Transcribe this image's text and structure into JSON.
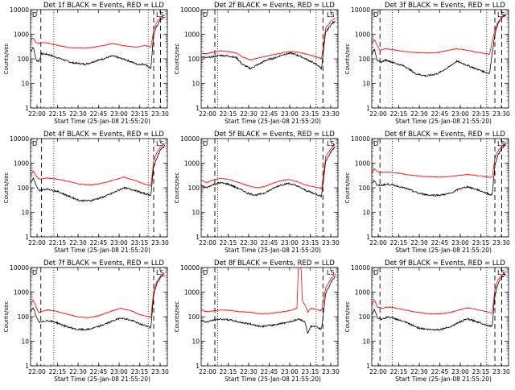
{
  "ylabel": "Counts/sec",
  "xlabel": "Start Time (25-Jan-08 21:55:20)",
  "yticks": [
    {
      "label": "1",
      "value": 1
    },
    {
      "label": "10",
      "value": 10
    },
    {
      "label": "100",
      "value": 100
    },
    {
      "label": "1000",
      "value": 1000
    },
    {
      "label": "10000",
      "value": 10000
    }
  ],
  "xticks": [
    {
      "label": "22:00",
      "value": 4.67
    },
    {
      "label": "22:15",
      "value": 19.67
    },
    {
      "label": "22:30",
      "value": 34.67
    },
    {
      "label": "22:45",
      "value": 49.67
    },
    {
      "label": "23:00",
      "value": 64.67
    },
    {
      "label": "23:15",
      "value": 79.67
    },
    {
      "label": "23:30",
      "value": 94.67
    }
  ],
  "colors": {
    "events": "#000000",
    "lld": "#ff0000",
    "axes": "#000000"
  },
  "chart_data": [
    {
      "type": "line",
      "title": "Det 1f BLACK = Events, RED = LLD",
      "corner_markers": [
        "D",
        "LS"
      ],
      "ylog": true,
      "ylim": [
        1,
        10000
      ],
      "xlim": [
        0,
        100
      ],
      "vlines_dashed": [
        7.5,
        90,
        95
      ],
      "vlines_dotted": [
        17,
        86
      ],
      "series": [
        {
          "name": "Events",
          "color": "#000000",
          "x": [
            0,
            2,
            4,
            6,
            8,
            12,
            20,
            30,
            40,
            50,
            60,
            70,
            78,
            84,
            88,
            90,
            92,
            95,
            98
          ],
          "y": [
            200,
            300,
            90,
            80,
            160,
            155,
            110,
            70,
            60,
            90,
            130,
            90,
            60,
            60,
            40,
            1000,
            2000,
            4000,
            5000
          ]
        },
        {
          "name": "LLD",
          "color": "#ff0000",
          "x": [
            0,
            2,
            4,
            6,
            8,
            12,
            20,
            30,
            40,
            50,
            60,
            70,
            78,
            84,
            88,
            90,
            92,
            95,
            98
          ],
          "y": [
            600,
            700,
            450,
            420,
            460,
            450,
            350,
            280,
            270,
            320,
            420,
            330,
            300,
            350,
            300,
            1500,
            3000,
            5000,
            6000
          ]
        }
      ]
    },
    {
      "type": "line",
      "title": "Det 2f BLACK = Events, RED = LLD",
      "corner_markers": [
        "D",
        "LS"
      ],
      "ylog": true,
      "ylim": [
        1,
        10000
      ],
      "xlim": [
        0,
        100
      ],
      "vlines_dashed": [
        10,
        89
      ],
      "vlines_dotted": [
        12,
        84
      ],
      "series": [
        {
          "name": "Events",
          "color": "#000000",
          "x": [
            0,
            4,
            8,
            14,
            20,
            26,
            30,
            36,
            42,
            48,
            54,
            60,
            66,
            72,
            78,
            84,
            86,
            88,
            91,
            95,
            98
          ],
          "y": [
            120,
            110,
            120,
            140,
            130,
            110,
            60,
            40,
            60,
            90,
            110,
            150,
            170,
            130,
            90,
            60,
            50,
            40,
            1200,
            2500,
            3500
          ]
        },
        {
          "name": "LLD",
          "color": "#ff0000",
          "x": [
            0,
            4,
            8,
            14,
            20,
            26,
            30,
            36,
            42,
            48,
            54,
            60,
            66,
            72,
            78,
            84,
            86,
            88,
            91,
            95,
            98
          ],
          "y": [
            170,
            160,
            180,
            210,
            200,
            170,
            120,
            90,
            110,
            130,
            150,
            180,
            200,
            180,
            150,
            120,
            110,
            100,
            1800,
            3500,
            4500
          ]
        }
      ]
    },
    {
      "type": "line",
      "title": "Det 3f BLACK = Events, RED = LLD",
      "corner_markers": [
        "D",
        "LS"
      ],
      "ylog": true,
      "ylim": [
        1,
        10000
      ],
      "xlim": [
        0,
        100
      ],
      "vlines_dashed": [
        6,
        90,
        95
      ],
      "vlines_dotted": [
        15,
        84
      ],
      "series": [
        {
          "name": "Events",
          "color": "#000000",
          "x": [
            0,
            2,
            4,
            6,
            10,
            16,
            24,
            32,
            40,
            48,
            56,
            62,
            68,
            76,
            82,
            86,
            90,
            92,
            95,
            98
          ],
          "y": [
            150,
            250,
            90,
            70,
            90,
            70,
            50,
            25,
            20,
            25,
            45,
            80,
            60,
            40,
            30,
            25,
            1000,
            2500,
            5000,
            6000
          ]
        },
        {
          "name": "LLD",
          "color": "#ff0000",
          "x": [
            0,
            2,
            4,
            6,
            10,
            16,
            24,
            32,
            40,
            48,
            56,
            62,
            68,
            76,
            82,
            86,
            90,
            92,
            95,
            98
          ],
          "y": [
            400,
            600,
            350,
            220,
            260,
            230,
            200,
            180,
            170,
            180,
            220,
            260,
            230,
            190,
            170,
            150,
            1500,
            3000,
            5000,
            7000
          ]
        }
      ]
    },
    {
      "type": "line",
      "title": "Det 4f BLACK = Events, RED = LLD",
      "corner_markers": [
        "D",
        "LS"
      ],
      "ylog": true,
      "ylim": [
        1,
        10000
      ],
      "xlim": [
        0,
        100
      ],
      "vlines_dashed": [
        8,
        90
      ],
      "vlines_dotted": [
        17,
        86
      ],
      "series": [
        {
          "name": "Events",
          "color": "#000000",
          "x": [
            0,
            2,
            4,
            6,
            8,
            12,
            20,
            28,
            36,
            44,
            52,
            60,
            68,
            76,
            82,
            88,
            90,
            92,
            95,
            98
          ],
          "y": [
            150,
            250,
            120,
            80,
            80,
            90,
            70,
            45,
            30,
            30,
            40,
            60,
            100,
            80,
            60,
            50,
            700,
            1500,
            3500,
            5000
          ]
        },
        {
          "name": "LLD",
          "color": "#ff0000",
          "x": [
            0,
            2,
            4,
            6,
            8,
            12,
            20,
            28,
            36,
            44,
            52,
            60,
            68,
            76,
            82,
            88,
            90,
            92,
            95,
            98
          ],
          "y": [
            300,
            500,
            300,
            230,
            230,
            250,
            220,
            180,
            140,
            130,
            150,
            200,
            270,
            200,
            150,
            120,
            1200,
            2500,
            4500,
            6000
          ]
        }
      ]
    },
    {
      "type": "line",
      "title": "Det 5f BLACK = Events, RED = LLD",
      "corner_markers": [
        "D",
        "LS"
      ],
      "ylog": true,
      "ylim": [
        1,
        10000
      ],
      "xlim": [
        0,
        100
      ],
      "vlines_dashed": [
        10,
        89
      ],
      "vlines_dotted": [
        12,
        84
      ],
      "series": [
        {
          "name": "Events",
          "color": "#000000",
          "x": [
            0,
            4,
            8,
            14,
            20,
            28,
            34,
            40,
            46,
            52,
            58,
            64,
            70,
            76,
            82,
            86,
            88,
            91,
            95,
            98
          ],
          "y": [
            120,
            100,
            130,
            160,
            140,
            90,
            60,
            50,
            60,
            90,
            130,
            150,
            120,
            80,
            60,
            50,
            45,
            1200,
            3000,
            5000
          ]
        },
        {
          "name": "LLD",
          "color": "#ff0000",
          "x": [
            0,
            4,
            8,
            14,
            20,
            28,
            34,
            40,
            46,
            52,
            58,
            64,
            70,
            76,
            82,
            86,
            88,
            91,
            95,
            98
          ],
          "y": [
            200,
            160,
            200,
            240,
            220,
            160,
            120,
            100,
            110,
            150,
            190,
            220,
            180,
            130,
            110,
            100,
            90,
            1800,
            4000,
            6000
          ]
        }
      ]
    },
    {
      "type": "line",
      "title": "Det 6f BLACK = Events, RED = LLD",
      "corner_markers": [
        "D",
        "LS"
      ],
      "ylog": true,
      "ylim": [
        1,
        10000
      ],
      "xlim": [
        0,
        100
      ],
      "vlines_dashed": [
        6,
        90,
        95
      ],
      "vlines_dotted": [
        15,
        84
      ],
      "series": [
        {
          "name": "Events",
          "color": "#000000",
          "x": [
            0,
            2,
            4,
            8,
            12,
            18,
            26,
            34,
            42,
            50,
            58,
            64,
            70,
            78,
            84,
            88,
            90,
            92,
            95,
            98
          ],
          "y": [
            150,
            200,
            120,
            130,
            140,
            120,
            90,
            60,
            50,
            50,
            60,
            90,
            110,
            80,
            60,
            50,
            800,
            2000,
            4000,
            6000
          ]
        },
        {
          "name": "LLD",
          "color": "#ff0000",
          "x": [
            0,
            2,
            4,
            8,
            12,
            18,
            26,
            34,
            42,
            50,
            58,
            64,
            70,
            78,
            84,
            88,
            90,
            92,
            95,
            98
          ],
          "y": [
            400,
            600,
            450,
            420,
            430,
            400,
            340,
            300,
            280,
            270,
            290,
            320,
            350,
            310,
            280,
            260,
            1500,
            3000,
            5000,
            7000
          ]
        }
      ]
    },
    {
      "type": "line",
      "title": "Det 7f BLACK = Events, RED = LLD",
      "corner_markers": [
        "D",
        "LS"
      ],
      "ylog": true,
      "ylim": [
        1,
        10000
      ],
      "xlim": [
        0,
        100
      ],
      "vlines_dashed": [
        7.5,
        90
      ],
      "vlines_dotted": [
        17,
        86
      ],
      "series": [
        {
          "name": "Events",
          "color": "#000000",
          "x": [
            0,
            2,
            4,
            6,
            8,
            12,
            18,
            26,
            34,
            42,
            50,
            58,
            66,
            74,
            80,
            86,
            88,
            90,
            92,
            95,
            98
          ],
          "y": [
            150,
            250,
            100,
            60,
            60,
            70,
            60,
            40,
            30,
            30,
            40,
            60,
            90,
            70,
            50,
            40,
            35,
            800,
            2000,
            4000,
            5000
          ]
        },
        {
          "name": "LLD",
          "color": "#ff0000",
          "x": [
            0,
            2,
            4,
            6,
            8,
            12,
            18,
            26,
            34,
            42,
            50,
            58,
            66,
            74,
            80,
            86,
            88,
            90,
            92,
            95,
            98
          ],
          "y": [
            300,
            500,
            250,
            150,
            160,
            190,
            170,
            130,
            100,
            90,
            110,
            160,
            220,
            170,
            120,
            100,
            90,
            1200,
            2500,
            4500,
            6000
          ]
        }
      ]
    },
    {
      "type": "line",
      "title": "Det 8f BLACK = Events, RED = LLD",
      "corner_markers": [
        "D",
        "LS"
      ],
      "ylog": true,
      "ylim": [
        1,
        10000
      ],
      "xlim": [
        0,
        100
      ],
      "vlines_dashed": [
        10,
        89
      ],
      "vlines_dotted": [
        12,
        84
      ],
      "series": [
        {
          "name": "Events",
          "color": "#000000",
          "x": [
            0,
            4,
            8,
            14,
            20,
            28,
            36,
            44,
            52,
            60,
            66,
            72,
            76,
            78,
            80,
            84,
            86,
            88,
            91,
            95,
            98
          ],
          "y": [
            70,
            60,
            70,
            80,
            75,
            60,
            50,
            40,
            45,
            55,
            65,
            80,
            60,
            20,
            40,
            40,
            35,
            30,
            900,
            2500,
            4500
          ]
        },
        {
          "name": "LLD",
          "color": "#ff0000",
          "x": [
            0,
            4,
            8,
            14,
            20,
            28,
            36,
            44,
            52,
            60,
            66,
            70,
            71,
            73,
            74,
            76,
            78,
            80,
            84,
            86,
            88,
            91,
            95,
            98
          ],
          "y": [
            180,
            160,
            170,
            190,
            180,
            160,
            150,
            130,
            140,
            160,
            180,
            220,
            10000,
            10000,
            400,
            300,
            150,
            220,
            200,
            180,
            170,
            1500,
            3500,
            5500
          ]
        }
      ]
    },
    {
      "type": "line",
      "title": "Det 9f BLACK = Events, RED = LLD",
      "corner_markers": [
        "D",
        "LS"
      ],
      "ylog": true,
      "ylim": [
        1,
        10000
      ],
      "xlim": [
        0,
        100
      ],
      "vlines_dashed": [
        6,
        90,
        95
      ],
      "vlines_dotted": [
        15,
        84
      ],
      "series": [
        {
          "name": "Events",
          "color": "#000000",
          "x": [
            0,
            2,
            4,
            8,
            12,
            18,
            26,
            34,
            42,
            50,
            58,
            64,
            70,
            78,
            84,
            88,
            90,
            92,
            95,
            98
          ],
          "y": [
            120,
            200,
            90,
            80,
            100,
            80,
            55,
            35,
            30,
            30,
            40,
            60,
            80,
            60,
            45,
            40,
            700,
            2000,
            4000,
            5500
          ]
        },
        {
          "name": "LLD",
          "color": "#ff0000",
          "x": [
            0,
            2,
            4,
            8,
            12,
            18,
            26,
            34,
            42,
            50,
            58,
            64,
            70,
            78,
            84,
            88,
            90,
            92,
            95,
            98
          ],
          "y": [
            300,
            500,
            250,
            220,
            250,
            220,
            180,
            150,
            130,
            130,
            150,
            190,
            230,
            190,
            160,
            140,
            1200,
            3000,
            5000,
            7000
          ]
        }
      ]
    }
  ]
}
